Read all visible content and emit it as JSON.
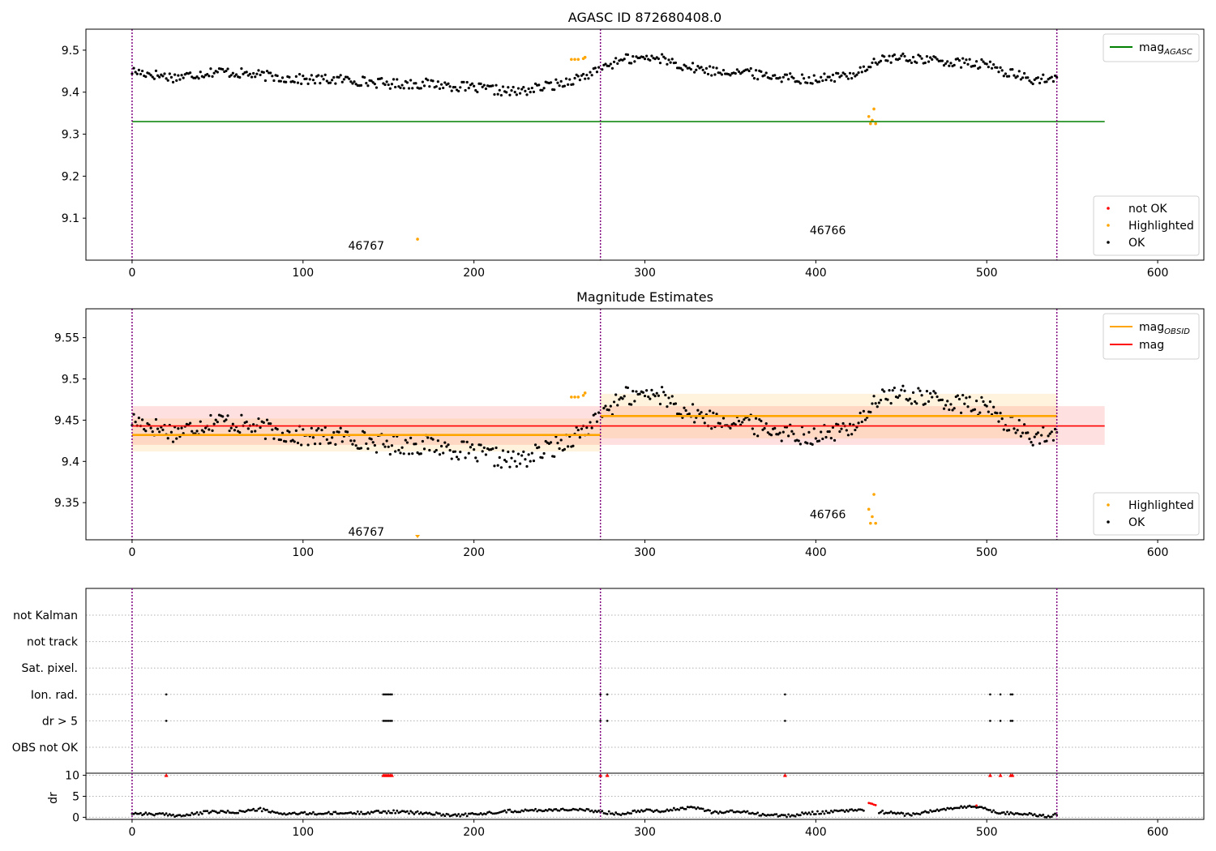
{
  "chart_data": [
    {
      "type": "scatter",
      "title": "AGASC ID 872680408.0",
      "xlim": [
        -27,
        627
      ],
      "ylim": [
        9.0,
        9.55
      ],
      "xticks": [
        0,
        100,
        200,
        300,
        400,
        500,
        600
      ],
      "yticks": [
        9.1,
        9.2,
        9.3,
        9.4,
        9.5
      ],
      "vlines": [
        0,
        274,
        541
      ],
      "hlines": [
        {
          "name": "mag_AGASC",
          "y": 9.33,
          "x": [
            0,
            569
          ],
          "color": "#008000"
        }
      ],
      "annotations": [
        {
          "text": "46767",
          "x": 137,
          "y": 9.025
        },
        {
          "text": "46766",
          "x": 407,
          "y": 9.062
        }
      ],
      "legend_top": {
        "placement": "top-right",
        "entries": [
          {
            "main": "mag",
            "sub": "AGASC",
            "color": "#008000",
            "marker": "line"
          }
        ]
      },
      "legend_bottom": {
        "placement": "bottom-right",
        "entries": [
          {
            "label": "not OK",
            "color": "#ff0000",
            "marker": "dot"
          },
          {
            "label": "Highlighted",
            "color": "#ffa500",
            "marker": "dot"
          },
          {
            "label": "OK",
            "color": "#000000",
            "marker": "dot"
          }
        ]
      },
      "series": [
        {
          "name": "OK",
          "color": "#000000",
          "segments": [
            {
              "x0": 0,
              "x1": 273,
              "anchors": [
                [
                  0,
                  9.45
                ],
                [
                  25,
                  9.435
                ],
                [
                  50,
                  9.45
                ],
                [
                  75,
                  9.44
                ],
                [
                  100,
                  9.43
                ],
                [
                  125,
                  9.43
                ],
                [
                  150,
                  9.42
                ],
                [
                  175,
                  9.42
                ],
                [
                  200,
                  9.41
                ],
                [
                  225,
                  9.4
                ],
                [
                  250,
                  9.42
                ],
                [
                  273,
                  9.45
                ]
              ],
              "noise": 0.012
            },
            {
              "x0": 275,
              "x1": 541,
              "anchors": [
                [
                  275,
                  9.46
                ],
                [
                  290,
                  9.48
                ],
                [
                  310,
                  9.48
                ],
                [
                  325,
                  9.46
                ],
                [
                  340,
                  9.45
                ],
                [
                  355,
                  9.45
                ],
                [
                  370,
                  9.44
                ],
                [
                  400,
                  9.43
                ],
                [
                  420,
                  9.44
                ],
                [
                  430,
                  9.46
                ],
                [
                  440,
                  9.48
                ],
                [
                  460,
                  9.48
                ],
                [
                  480,
                  9.47
                ],
                [
                  500,
                  9.465
                ],
                [
                  510,
                  9.45
                ],
                [
                  525,
                  9.43
                ],
                [
                  541,
                  9.43
                ]
              ],
              "noise": 0.012
            }
          ]
        },
        {
          "name": "Highlighted",
          "color": "#ffa500",
          "points": [
            [
              257,
              9.478
            ],
            [
              259,
              9.478
            ],
            [
              261,
              9.478
            ],
            [
              264,
              9.48
            ],
            [
              265,
              9.483
            ],
            [
              167,
              9.05
            ],
            [
              431,
              9.342
            ],
            [
              432,
              9.325
            ],
            [
              433,
              9.333
            ],
            [
              434,
              9.36
            ],
            [
              435,
              9.325
            ]
          ]
        }
      ]
    },
    {
      "type": "scatter",
      "title": "Magnitude Estimates",
      "xlim": [
        -27,
        627
      ],
      "ylim": [
        9.305,
        9.585
      ],
      "xticks": [
        0,
        100,
        200,
        300,
        400,
        500,
        600
      ],
      "yticks": [
        9.35,
        9.4,
        9.45,
        9.5,
        9.55
      ],
      "vlines": [
        0,
        274,
        541
      ],
      "bands": [
        {
          "x": [
            0,
            569
          ],
          "y": [
            9.42,
            9.467
          ],
          "color": "#ff0000",
          "opacity": 0.12
        },
        {
          "x": [
            0,
            274
          ],
          "y": [
            9.412,
            9.452
          ],
          "color": "#ffa500",
          "opacity": 0.13
        },
        {
          "x": [
            274,
            541
          ],
          "y": [
            9.428,
            9.482
          ],
          "color": "#ffa500",
          "opacity": 0.13
        }
      ],
      "hlines": [
        {
          "name": "mag_OBSID",
          "y": 9.432,
          "x": [
            0,
            274
          ],
          "color": "#ffa500"
        },
        {
          "name": "mag_OBSID",
          "y": 9.455,
          "x": [
            274,
            541
          ],
          "color": "#ffa500"
        },
        {
          "name": "mag",
          "y": 9.443,
          "x": [
            0,
            569
          ],
          "color": "#ff0000"
        }
      ],
      "annotations": [
        {
          "text": "46767",
          "x": 137,
          "y": 9.31
        },
        {
          "text": "46766",
          "x": 407,
          "y": 9.331
        }
      ],
      "legend_top": {
        "placement": "top-right",
        "entries": [
          {
            "main": "mag",
            "sub": "OBSID",
            "color": "#ffa500",
            "marker": "line"
          },
          {
            "main": "mag",
            "sub": "",
            "color": "#ff0000",
            "marker": "line"
          }
        ]
      },
      "legend_bottom": {
        "placement": "bottom-right",
        "entries": [
          {
            "label": "Highlighted",
            "color": "#ffa500",
            "marker": "dot"
          },
          {
            "label": "OK",
            "color": "#000000",
            "marker": "dot"
          }
        ]
      },
      "series": [
        {
          "name": "OK",
          "color": "#000000",
          "segments": [
            {
              "x0": 0,
              "x1": 273,
              "anchors": [
                [
                  0,
                  9.45
                ],
                [
                  25,
                  9.435
                ],
                [
                  50,
                  9.45
                ],
                [
                  75,
                  9.44
                ],
                [
                  100,
                  9.43
                ],
                [
                  125,
                  9.43
                ],
                [
                  150,
                  9.42
                ],
                [
                  175,
                  9.42
                ],
                [
                  200,
                  9.41
                ],
                [
                  225,
                  9.4
                ],
                [
                  250,
                  9.42
                ],
                [
                  273,
                  9.45
                ]
              ],
              "noise": 0.012
            },
            {
              "x0": 275,
              "x1": 541,
              "anchors": [
                [
                  275,
                  9.46
                ],
                [
                  290,
                  9.48
                ],
                [
                  310,
                  9.48
                ],
                [
                  325,
                  9.46
                ],
                [
                  340,
                  9.45
                ],
                [
                  355,
                  9.45
                ],
                [
                  370,
                  9.44
                ],
                [
                  400,
                  9.43
                ],
                [
                  420,
                  9.44
                ],
                [
                  430,
                  9.46
                ],
                [
                  440,
                  9.48
                ],
                [
                  460,
                  9.48
                ],
                [
                  480,
                  9.47
                ],
                [
                  500,
                  9.465
                ],
                [
                  510,
                  9.45
                ],
                [
                  525,
                  9.43
                ],
                [
                  541,
                  9.43
                ]
              ],
              "noise": 0.012
            }
          ]
        },
        {
          "name": "Highlighted",
          "color": "#ffa500",
          "points": [
            [
              257,
              9.478
            ],
            [
              259,
              9.478
            ],
            [
              261,
              9.478
            ],
            [
              264,
              9.48
            ],
            [
              265,
              9.483
            ],
            [
              431,
              9.342
            ],
            [
              432,
              9.325
            ],
            [
              433,
              9.333
            ],
            [
              434,
              9.36
            ],
            [
              435,
              9.325
            ]
          ],
          "offscale": [
            {
              "x": 167,
              "dir": "down"
            }
          ]
        }
      ]
    },
    {
      "type": "scatter",
      "title": "",
      "xlim": [
        -27,
        627
      ],
      "xticks": [
        0,
        100,
        200,
        300,
        400,
        500,
        600
      ],
      "vlines": [
        0,
        274,
        541
      ],
      "flag_rows": [
        "not Kalman",
        "not track",
        "Sat. pixel.",
        "Ion. rad.",
        "dr > 5",
        "OBS not OK"
      ],
      "flag_points": {
        "Ion. rad.": [
          20,
          147,
          148,
          149,
          150,
          151,
          152,
          274,
          278,
          382,
          502,
          508,
          514,
          515
        ],
        "dr > 5": [
          20,
          147,
          148,
          149,
          150,
          151,
          152,
          274,
          278,
          382,
          502,
          508,
          514,
          515
        ]
      },
      "dr_panel": {
        "ylabel": "dr",
        "ylim": [
          -0.5,
          10.5
        ],
        "yticks": [
          0,
          5,
          10
        ],
        "high_points": [
          20,
          147,
          148,
          149,
          150,
          151,
          152,
          274,
          278,
          382,
          502,
          508,
          514,
          515
        ],
        "red_points": [
          [
            431,
            3.4
          ],
          [
            432,
            3.3
          ],
          [
            433,
            3.2
          ],
          [
            434,
            3.0
          ],
          [
            435,
            2.9
          ],
          [
            494,
            2.8
          ]
        ],
        "segments": [
          {
            "x0": 0,
            "x1": 541,
            "anchors": [
              [
                0,
                1.0
              ],
              [
                20,
                0.6
              ],
              [
                30,
                0.4
              ],
              [
                45,
                1.3
              ],
              [
                60,
                1.2
              ],
              [
                75,
                1.9
              ],
              [
                85,
                0.9
              ],
              [
                110,
                0.9
              ],
              [
                130,
                1.0
              ],
              [
                145,
                1.3
              ],
              [
                155,
                1.3
              ],
              [
                170,
                1.0
              ],
              [
                190,
                0.5
              ],
              [
                205,
                0.8
              ],
              [
                215,
                1.4
              ],
              [
                230,
                1.6
              ],
              [
                255,
                1.9
              ],
              [
                270,
                1.5
              ],
              [
                285,
                0.8
              ],
              [
                300,
                1.8
              ],
              [
                310,
                1.5
              ],
              [
                320,
                2.0
              ],
              [
                330,
                2.3
              ],
              [
                340,
                1.2
              ],
              [
                355,
                1.4
              ],
              [
                370,
                0.6
              ],
              [
                385,
                0.3
              ],
              [
                395,
                1.0
              ],
              [
                410,
                1.3
              ],
              [
                425,
                1.8
              ],
              [
                440,
                1.2
              ],
              [
                455,
                0.6
              ],
              [
                470,
                1.6
              ],
              [
                480,
                2.2
              ],
              [
                495,
                2.6
              ],
              [
                505,
                1.2
              ],
              [
                520,
                0.9
              ],
              [
                535,
                0.2
              ],
              [
                541,
                0.6
              ]
            ],
            "noise": 0.35
          }
        ]
      }
    }
  ]
}
